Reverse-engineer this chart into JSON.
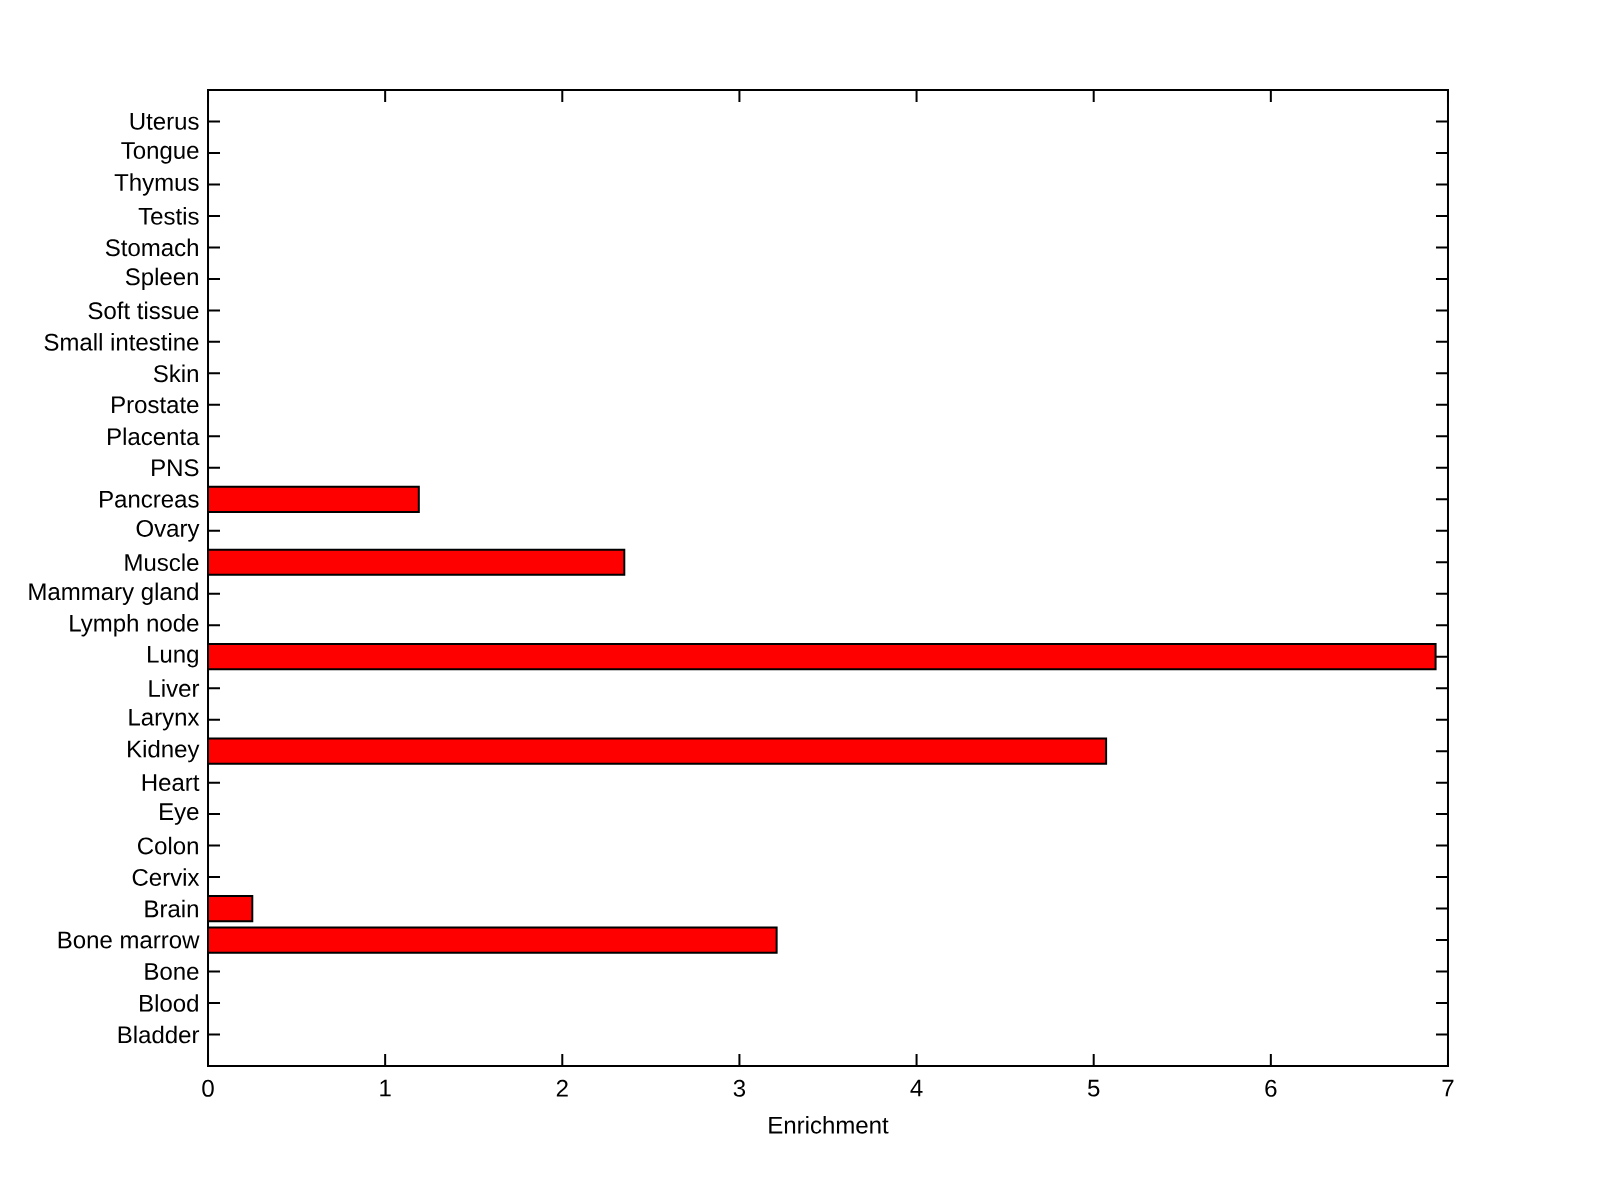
{
  "chart_data": {
    "type": "bar",
    "orientation": "horizontal",
    "xlabel": "Enrichment",
    "categories": [
      "Uterus",
      "Tongue",
      "Thymus",
      "Testis",
      "Stomach",
      "Spleen",
      "Soft tissue",
      "Small intestine",
      "Skin",
      "Prostate",
      "Placenta",
      "PNS",
      "Pancreas",
      "Ovary",
      "Muscle",
      "Mammary gland",
      "Lymph node",
      "Lung",
      "Liver",
      "Larynx",
      "Kidney",
      "Heart",
      "Eye",
      "Colon",
      "Cervix",
      "Brain",
      "Bone marrow",
      "Bone",
      "Blood",
      "Bladder"
    ],
    "values": [
      0,
      0,
      0,
      0,
      0,
      0,
      0,
      0,
      0,
      0,
      0,
      0,
      1.19,
      0,
      2.35,
      0,
      0,
      6.93,
      0,
      0,
      5.07,
      0,
      0,
      0,
      0,
      0.25,
      3.21,
      0,
      0,
      0
    ],
    "color": "#ff0000",
    "xlim": [
      0,
      7
    ],
    "xticks": [
      0,
      1,
      2,
      3,
      4,
      5,
      6,
      7
    ]
  }
}
